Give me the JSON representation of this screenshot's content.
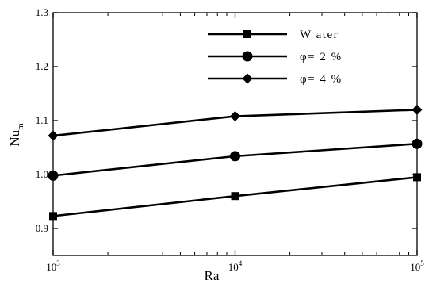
{
  "chart_data": {
    "type": "line",
    "x": [
      1000,
      10000,
      100000
    ],
    "x_ticks": [
      {
        "base": "10",
        "exp": "3"
      },
      {
        "base": "10",
        "exp": "4"
      },
      {
        "base": "10",
        "exp": "5"
      }
    ],
    "xscale": "log",
    "xlim": [
      1000,
      100000
    ],
    "ylim": [
      0.85,
      1.3
    ],
    "y_ticks": [
      "0.9",
      "1.0",
      "1.1",
      "1.2",
      "1.3"
    ],
    "y_tick_values": [
      0.9,
      1.0,
      1.1,
      1.2,
      1.3
    ],
    "xlabel": "Ra",
    "ylabel": {
      "main": "Nu",
      "sub": "m"
    },
    "grid": false,
    "legend_position": "top-right",
    "series": [
      {
        "name": "W ater",
        "marker": "square",
        "values": [
          0.923,
          0.96,
          0.995
        ]
      },
      {
        "name": "φ= 2 %",
        "marker": "circle",
        "values": [
          0.998,
          1.034,
          1.057
        ]
      },
      {
        "name": "φ= 4 %",
        "marker": "diamond",
        "values": [
          1.072,
          1.108,
          1.12
        ]
      }
    ],
    "colors": {
      "line": "#000000",
      "background": "#ffffff"
    }
  }
}
